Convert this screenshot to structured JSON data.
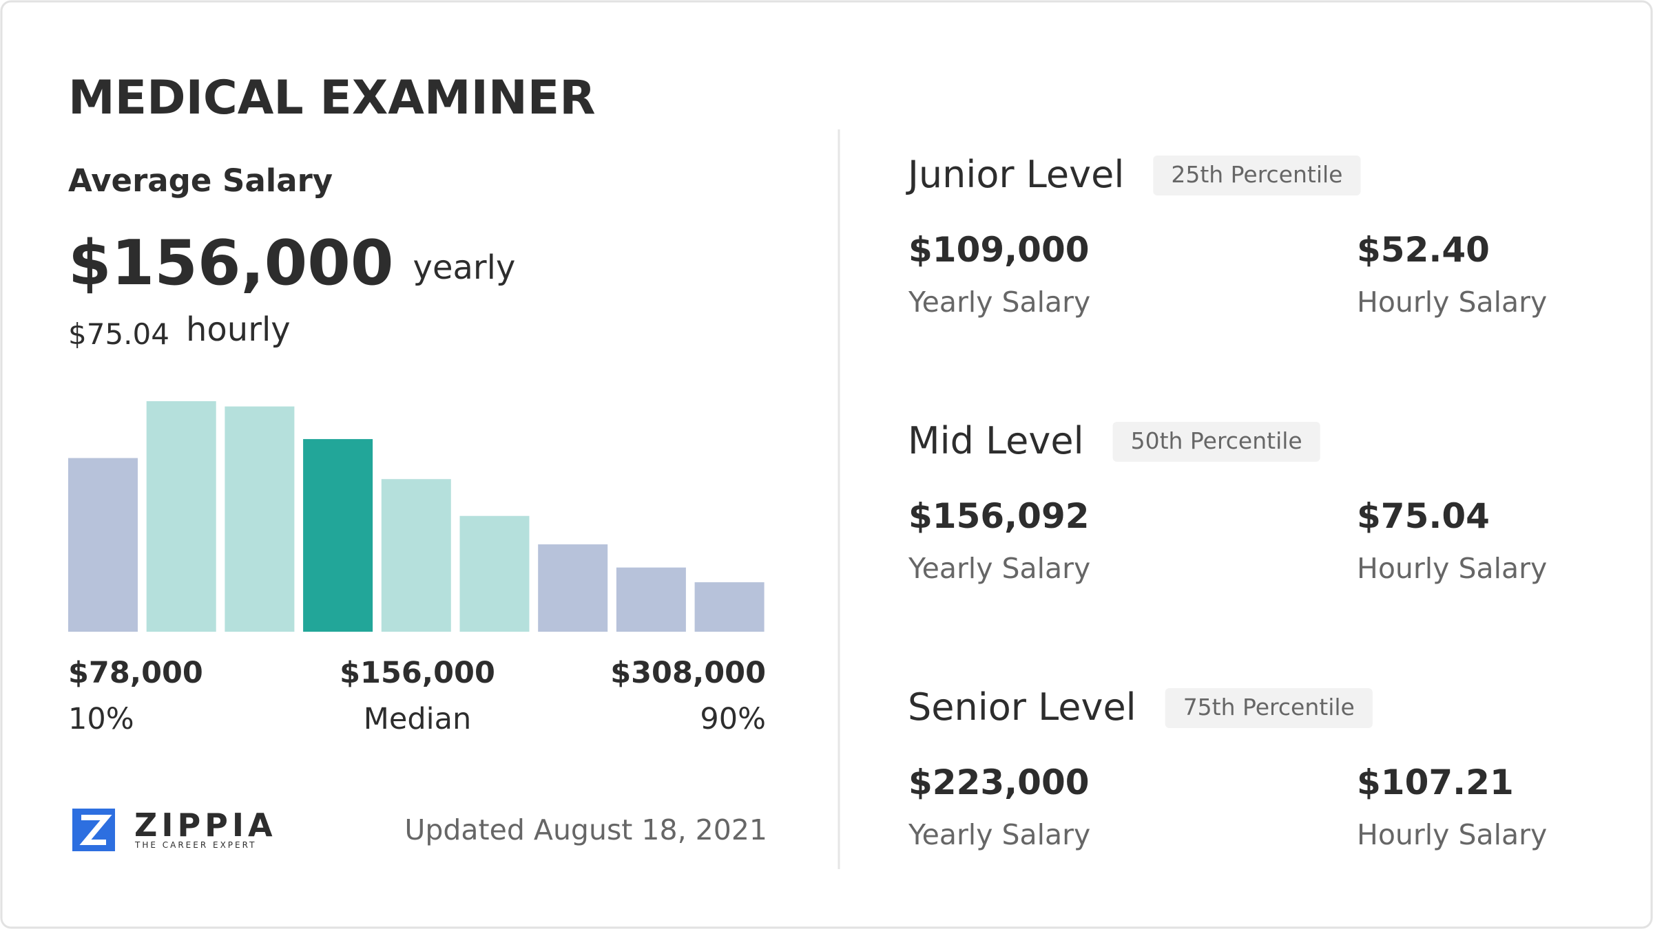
{
  "header": {
    "title": "MEDICAL EXAMINER"
  },
  "average": {
    "label": "Average Salary",
    "yearly_value": "$156,000",
    "yearly_unit": "yearly",
    "hourly_value": "$75.04",
    "hourly_unit": "hourly"
  },
  "histogram": {
    "values": [
      165,
      219,
      214,
      183,
      145,
      110,
      83,
      61,
      47
    ],
    "colors": [
      "#b7c2da",
      "#b5e0dc",
      "#b5e0dc",
      "#22a699",
      "#b5e0dc",
      "#b5e0dc",
      "#b7c2da",
      "#b7c2da",
      "#b7c2da"
    ],
    "labels": [
      {
        "amount": "$78,000",
        "caption": "10%"
      },
      {
        "amount": "$156,000",
        "caption": "Median"
      },
      {
        "amount": "$308,000",
        "caption": "90%"
      }
    ]
  },
  "footer": {
    "brand": "ZIPPIA",
    "tagline": "THE CAREER EXPERT",
    "updated": "Updated August 18, 2021"
  },
  "levels": [
    {
      "name": "Junior Level",
      "percentile": "25th Percentile",
      "yearly": "$109,000",
      "yearly_label": "Yearly Salary",
      "hourly": "$52.40",
      "hourly_label": "Hourly Salary"
    },
    {
      "name": "Mid Level",
      "percentile": "50th Percentile",
      "yearly": "$156,092",
      "yearly_label": "Yearly Salary",
      "hourly": "$75.04",
      "hourly_label": "Hourly Salary"
    },
    {
      "name": "Senior Level",
      "percentile": "75th Percentile",
      "yearly": "$223,000",
      "yearly_label": "Yearly Salary",
      "hourly": "$107.21",
      "hourly_label": "Hourly Salary"
    }
  ]
}
